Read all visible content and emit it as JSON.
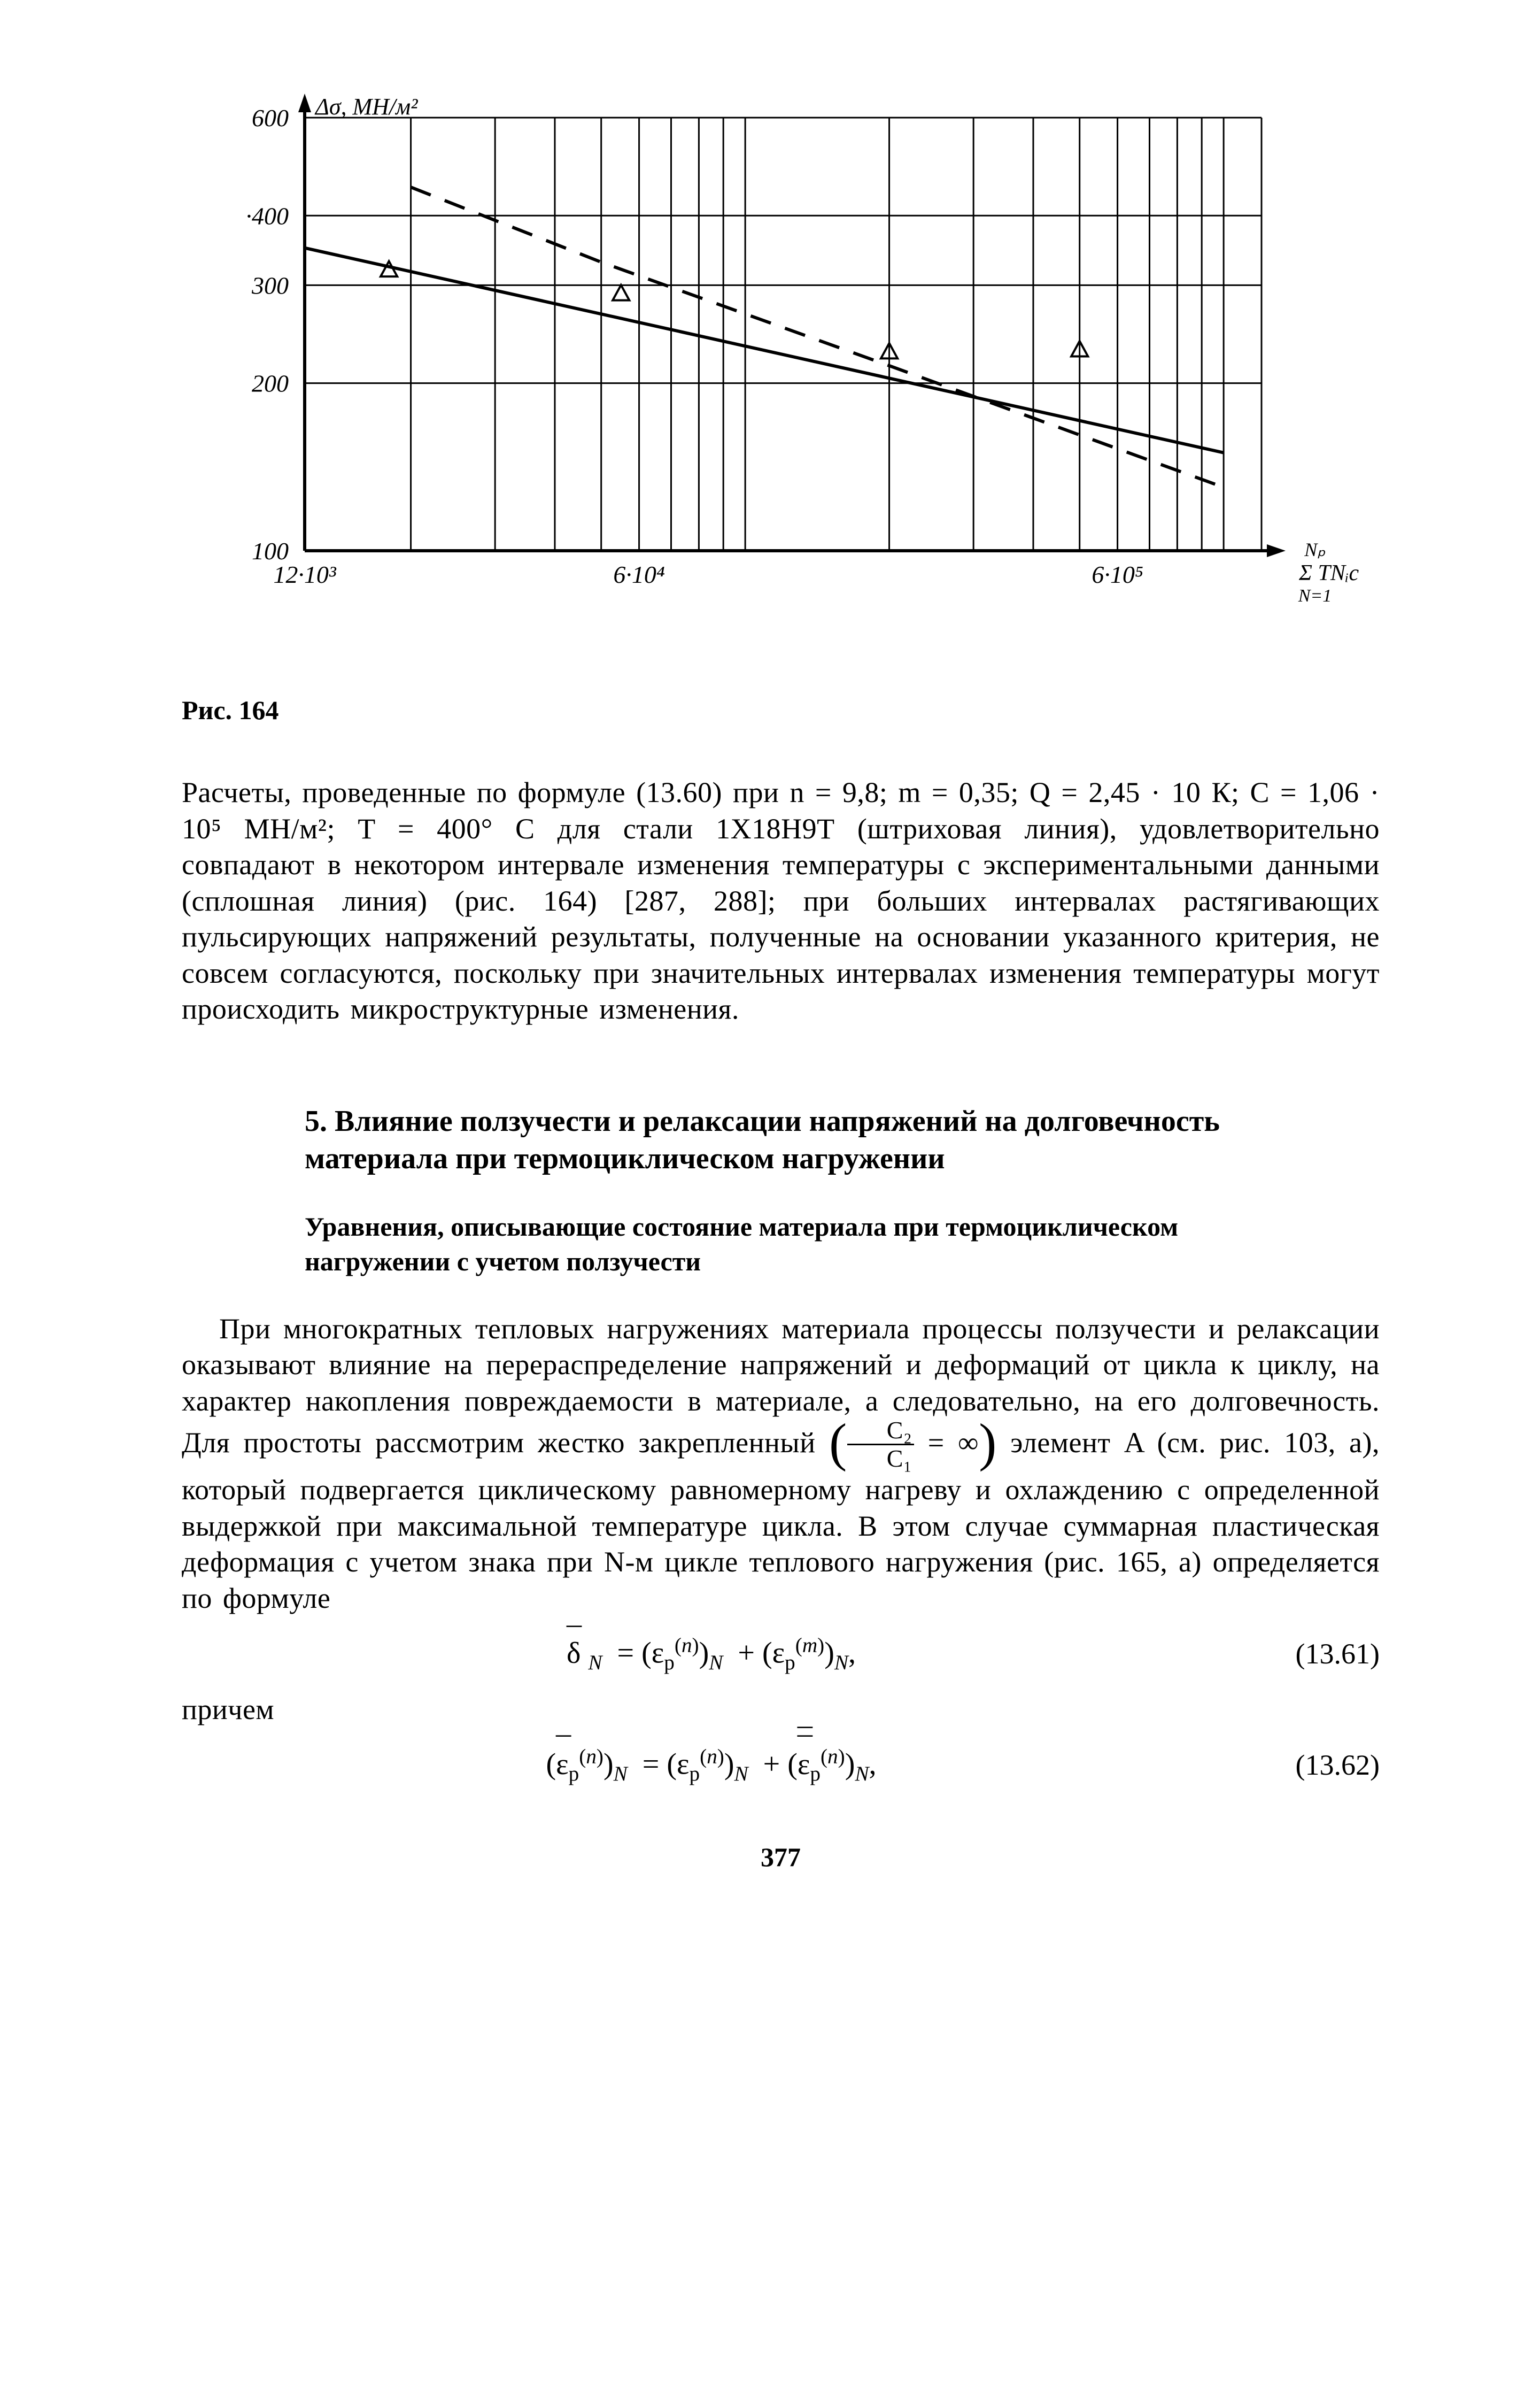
{
  "chart": {
    "type": "line-log",
    "background_color": "#ffffff",
    "axis_color": "#000000",
    "y_label": "Δσ, МН/м²",
    "y_label_fontsize": 44,
    "x_label_right": "",
    "y_ticks": [
      100,
      200,
      300,
      400,
      600
    ],
    "y_tick_labels": [
      "100",
      "200",
      "300",
      "·400",
      "600"
    ],
    "x_ticks_major": [
      12000,
      60000,
      600000
    ],
    "x_tick_labels": [
      "12·10³",
      "6·10⁴",
      "6·10⁵"
    ],
    "solid_line": {
      "color": "#000000",
      "width": 6,
      "points": [
        [
          12000,
          350
        ],
        [
          1000000,
          150
        ]
      ]
    },
    "dashed_line": {
      "color": "#000000",
      "width": 6,
      "dash": "40 28",
      "points": [
        [
          20000,
          450
        ],
        [
          50000,
          330
        ],
        [
          200000,
          215
        ],
        [
          1000000,
          130
        ]
      ]
    },
    "markers": {
      "shape": "triangle",
      "size": 26,
      "color": "#000000",
      "points": [
        [
          18000,
          320
        ],
        [
          55000,
          290
        ],
        [
          200000,
          228
        ],
        [
          500000,
          230
        ]
      ]
    },
    "plot_xlim": [
      12000,
      1200000
    ],
    "plot_ylim": [
      100,
      600
    ],
    "axis_fontsize": 46,
    "line_width_grid": 3
  },
  "fig_caption": "Рис. 164",
  "paragraph1": "Расчеты, проведенные по формуле (13.60) при n = 9,8; m = 0,35; Q = 2,45 · 10 К;  C = 1,06 · 10⁵ МН/м²;  T = 400° С для стали 1Х18Н9Т (штриховая линия), удовлетворительно совпадают в не­котором интервале изменения температуры с экспериментальными данными (сплошная линия) (рис. 164) [287, 288]; при больших ин­тервалах растягивающих пульсирующих напряжений результаты, полученные на основании указанного критерия, не совсем согла­суются, поскольку при значительных интервалах изменения тем­пературы могут происходить микроструктурные изменения.",
  "section_title": "5. Влияние ползучести и релаксации напряжений на долговечность материала при термоциклическом нагружении",
  "subsection_title": "Уравнения, описывающие состояние материала при термоциклическом нагружении с учетом ползучести",
  "paragraph2_a": "При многократных тепловых нагружениях материала процессы ползучести и релаксации оказывают влияние на перераспределение напряжений и деформаций от цикла к циклу, на характер накопле­ния повреждаемости в материале, а следовательно, на его долго­вечность. Для простоты рассмотрим жестко закрепленный ",
  "paragraph2_b": " элемент A (см. рис. 103, а), который подвергается циклическому равномерному нагреву и охлаждению c определенной выдержкой при максимальной температуре цикла. В этом случае суммарная пластическая деформация c учетом знака при N-м цикле теплового нагружения (рис. 165, а) определяется по формуле",
  "frac_num": "C₂",
  "frac_den": "C₁",
  "frac_eq": " = ∞",
  "eq1_text": "δ̄ₙ = (εₚ⁽ⁿ⁾)ₙ + (εₚ⁽ᵐ⁾)ₙ,",
  "eq1_num": "(13.61)",
  "between_eq": "причем",
  "eq2_text": "(ε̄ₚ⁽ⁿ⁾)ₙ = (εₚ⁽ⁿ⁾)ₙ + (ε̄̄ₚ⁽ⁿ⁾)ₙ,",
  "eq2_num": "(13.62)",
  "page_number": "377",
  "sum_label_top": "Nₚ",
  "sum_label_mid": "Σ TNᵢc",
  "sum_label_bot": "N=1"
}
